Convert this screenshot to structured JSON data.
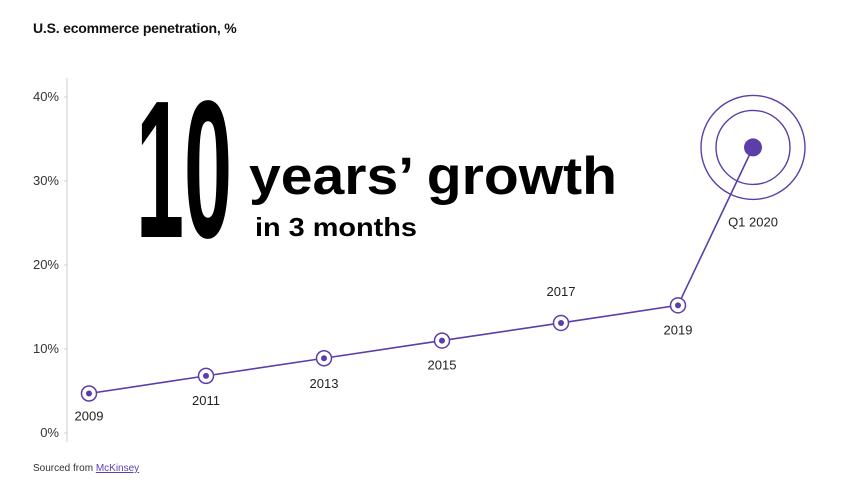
{
  "chart_data": {
    "type": "line",
    "title": "U.S. ecommerce penetration, %",
    "y_ticks": [
      "0%",
      "10%",
      "20%",
      "30%",
      "40%"
    ],
    "ylim": [
      0,
      40
    ],
    "points": [
      {
        "label": "2009",
        "value": 4.7
      },
      {
        "label": "2011",
        "value": 6.8
      },
      {
        "label": "2013",
        "value": 8.9
      },
      {
        "label": "2015",
        "value": 11.0
      },
      {
        "label": "2017",
        "value": 13.1
      },
      {
        "label": "2019",
        "value": 15.2
      },
      {
        "label": "Q1 2020",
        "value": 34.0
      }
    ],
    "headline": {
      "number": "10",
      "line1": "years’ growth",
      "line2": "in 3 months"
    },
    "grid": false,
    "accent_color": "#5b3ea8"
  },
  "footer": {
    "source_prefix": "Sourced from ",
    "source_link": "McKinsey"
  }
}
